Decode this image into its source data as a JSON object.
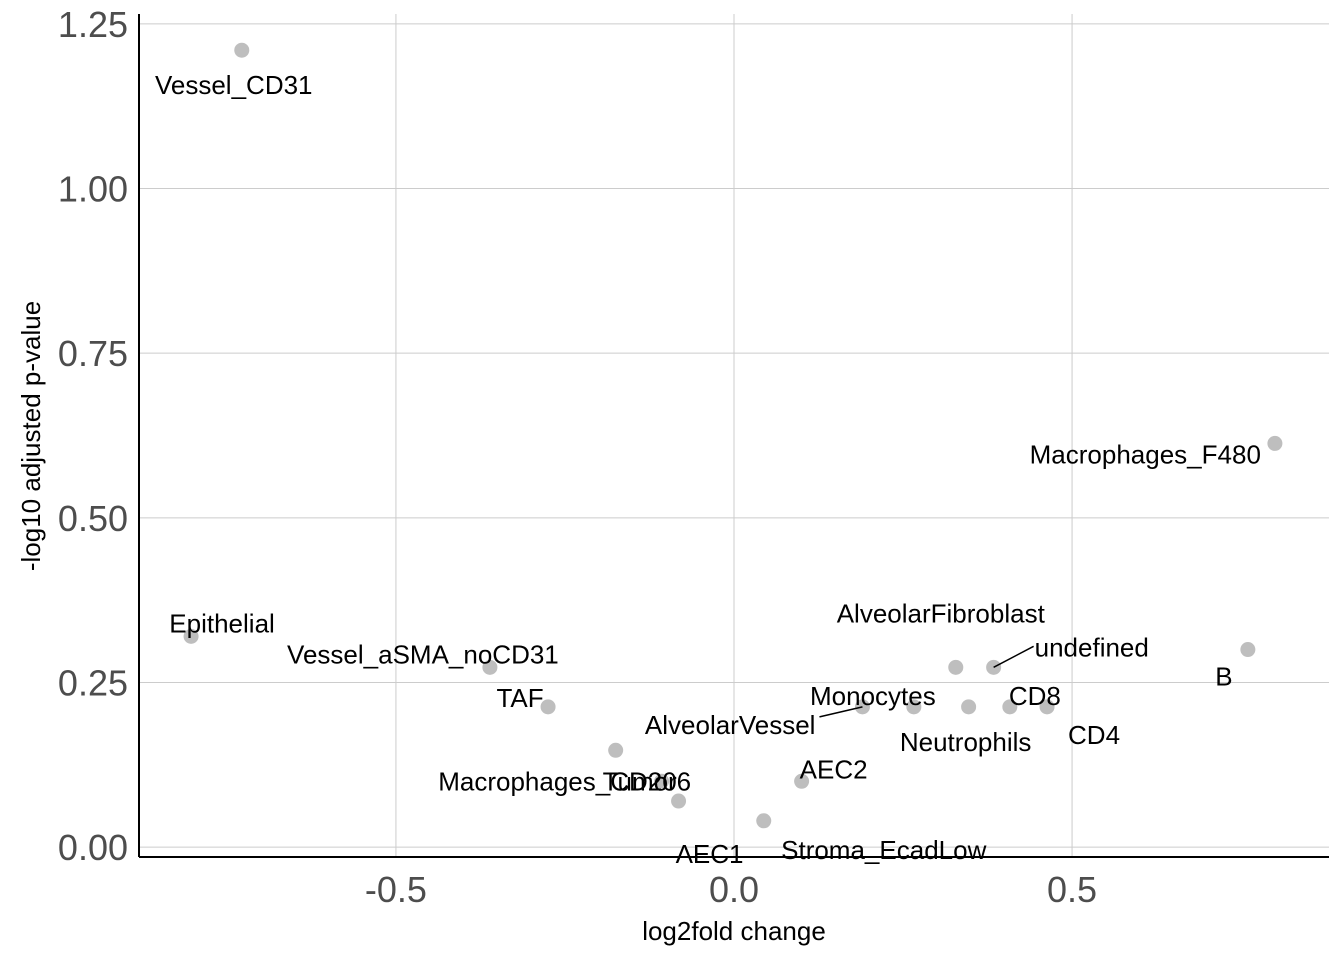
{
  "chart_data": {
    "type": "scatter",
    "title": "",
    "xlabel": "log2fold change",
    "ylabel": "-log10 adjusted p-value",
    "xlim": [
      -0.88,
      0.88
    ],
    "ylim": [
      -0.015,
      1.265
    ],
    "x_ticks": [
      -0.5,
      0.0,
      0.5
    ],
    "x_tick_labels": [
      "-0.5",
      "0.0",
      "0.5"
    ],
    "y_ticks": [
      0.0,
      0.25,
      0.5,
      0.75,
      1.0,
      1.25
    ],
    "y_tick_labels": [
      "0.00",
      "0.25",
      "0.50",
      "0.75",
      "1.00",
      "1.25"
    ],
    "grid": true,
    "point_color": "#bebebe",
    "points": [
      {
        "label": "Vessel_CD31",
        "x": -0.728,
        "y": 1.21
      },
      {
        "label": "Epithelial",
        "x": -0.803,
        "y": 0.32
      },
      {
        "label": "Vessel_aSMA_noCD31",
        "x": -0.361,
        "y": 0.273
      },
      {
        "label": "TAF",
        "x": -0.275,
        "y": 0.213
      },
      {
        "label": "Macrophages_CD206",
        "x": -0.175,
        "y": 0.147
      },
      {
        "label": "Tumor",
        "x": -0.107,
        "y": 0.1
      },
      {
        "label": "AEC1",
        "x": -0.082,
        "y": 0.07
      },
      {
        "label": "Stroma_EcadLow",
        "x": 0.044,
        "y": 0.04
      },
      {
        "label": "AEC2",
        "x": 0.1,
        "y": 0.1
      },
      {
        "label": "AlveolarVessel",
        "x": 0.19,
        "y": 0.213
      },
      {
        "label": "Monocytes",
        "x": 0.266,
        "y": 0.213
      },
      {
        "label": "AlveolarFibroblast",
        "x": 0.328,
        "y": 0.273
      },
      {
        "label": "Neutrophils",
        "x": 0.347,
        "y": 0.213
      },
      {
        "label": "undefined",
        "x": 0.384,
        "y": 0.273
      },
      {
        "label": "CD8",
        "x": 0.408,
        "y": 0.213
      },
      {
        "label": "CD4",
        "x": 0.463,
        "y": 0.213
      },
      {
        "label": "B",
        "x": 0.76,
        "y": 0.3
      },
      {
        "label": "Macrophages_F480",
        "x": 0.8,
        "y": 0.613
      }
    ]
  }
}
